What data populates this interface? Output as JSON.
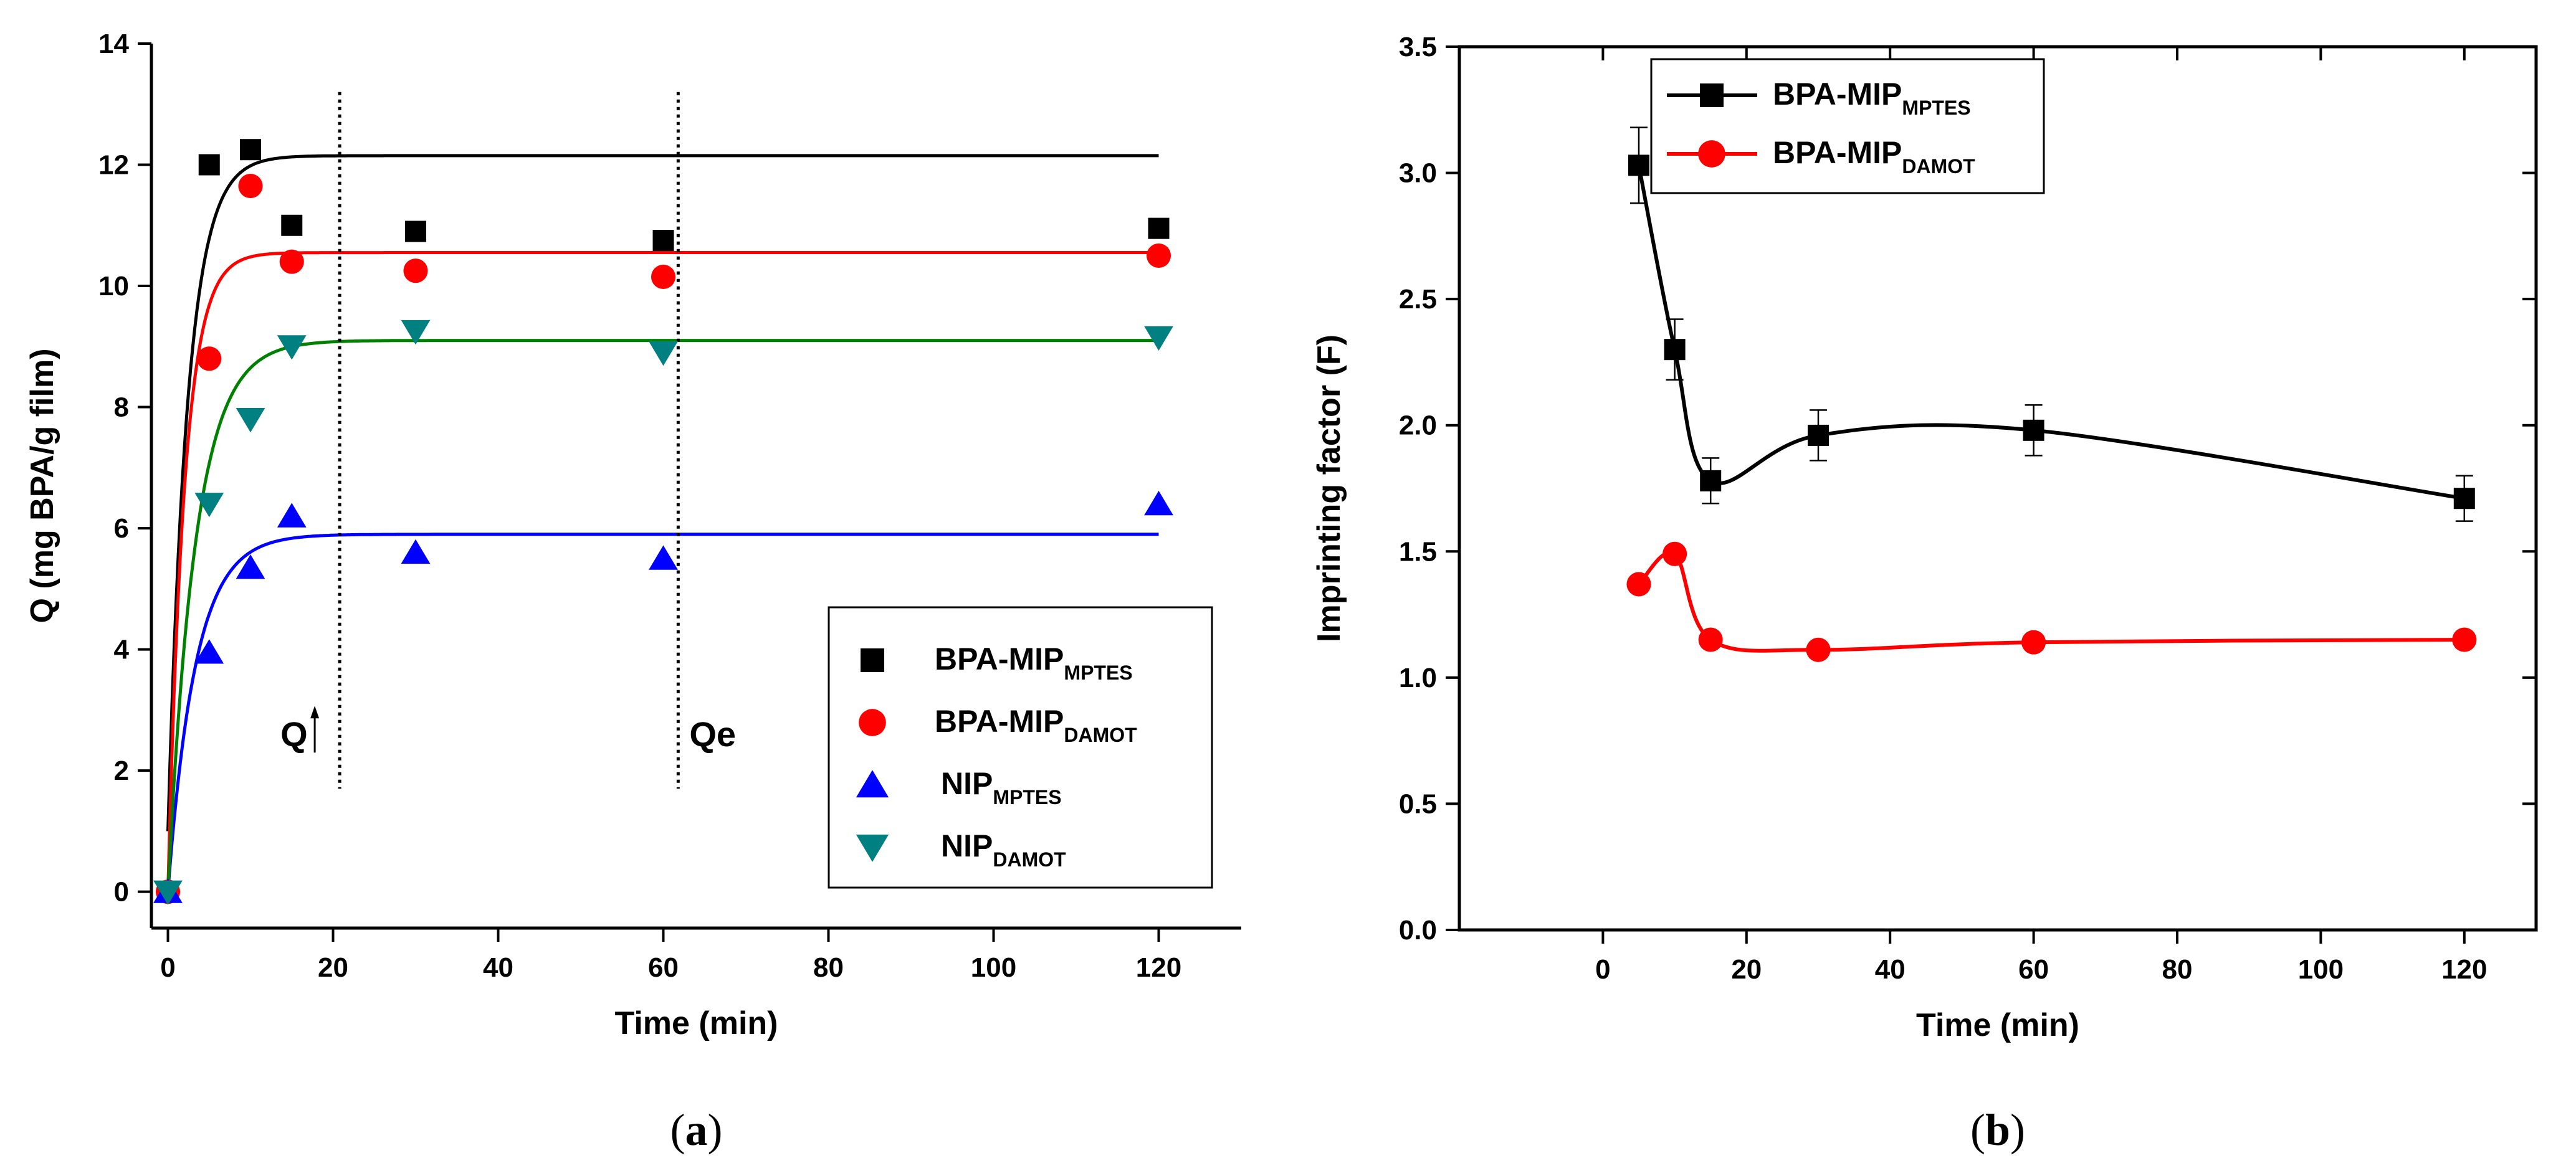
{
  "chart_data": [
    {
      "id": "a",
      "type": "scatter",
      "caption_letter": "a",
      "xlabel": "Time (min)",
      "ylabel": "Q (mg BPA/g film)",
      "xlim": [
        -2,
        130
      ],
      "ylim": [
        -0.6,
        14
      ],
      "xticks": [
        0,
        20,
        40,
        60,
        80,
        100,
        120
      ],
      "yticks": [
        0,
        2,
        4,
        6,
        8,
        10,
        12,
        14
      ],
      "legend_position": "bottom-right",
      "annotations": [
        {
          "text": "Q",
          "arrow": true,
          "at_x": 20.8,
          "ymin": 1.7,
          "ymax": 13.2
        },
        {
          "text": "Qe",
          "arrow": false,
          "at_x": 61.8,
          "ymin": 1.7,
          "ymax": 13.2
        }
      ],
      "series": [
        {
          "name": "BPA-MIP",
          "sub": "MPTES",
          "marker": "square",
          "color": "#000000",
          "x": [
            0,
            5,
            10,
            15,
            30,
            60,
            120
          ],
          "y": [
            0,
            12.0,
            12.25,
            11.0,
            10.9,
            10.75,
            10.95
          ],
          "fit": {
            "model": "first_order",
            "qe": 12.15,
            "k": 0.42,
            "x0": 0,
            "y0": 1.0
          }
        },
        {
          "name": "BPA-MIP",
          "sub": "DAMOT",
          "marker": "circle",
          "color": "#ff0000",
          "x": [
            0,
            5,
            10,
            15,
            30,
            60,
            120
          ],
          "y": [
            0,
            8.8,
            11.65,
            10.4,
            10.25,
            10.15,
            10.5
          ],
          "fit": {
            "model": "first_order",
            "qe": 10.55,
            "k": 0.5,
            "x0": 0,
            "y0": 0
          }
        },
        {
          "name": "NIP",
          "sub": "MPTES",
          "marker": "triangle-up",
          "color": "#0000ff",
          "x": [
            0,
            5,
            10,
            15,
            30,
            60,
            120
          ],
          "y": [
            0,
            3.95,
            5.35,
            6.2,
            5.6,
            5.5,
            6.4
          ],
          "fit": {
            "model": "first_order",
            "qe": 5.9,
            "k": 0.3,
            "x0": 0,
            "y0": 0
          }
        },
        {
          "name": "NIP",
          "sub": "DAMOT",
          "marker": "triangle-down",
          "color": "#008080",
          "x": [
            0,
            5,
            10,
            15,
            30,
            60,
            120
          ],
          "y": [
            0,
            6.4,
            7.8,
            9.0,
            9.25,
            8.9,
            9.15
          ],
          "fit": {
            "model": "first_order",
            "qe": 9.1,
            "k": 0.3,
            "x0": 0,
            "y0": 0
          }
        }
      ]
    },
    {
      "id": "b",
      "type": "line",
      "caption_letter": "b",
      "xlabel": "Time (min)",
      "ylabel": "Imprinting factor (F)",
      "xlim": [
        -20,
        130
      ],
      "ylim": [
        0,
        3.5
      ],
      "xticks": [
        0,
        20,
        40,
        60,
        80,
        100,
        120
      ],
      "yticks": [
        0.0,
        0.5,
        1.0,
        1.5,
        2.0,
        2.5,
        3.0,
        3.5
      ],
      "legend_position": "top-left",
      "series": [
        {
          "name": "BPA-MIP",
          "sub": "MPTES",
          "marker": "square",
          "color": "#000000",
          "x": [
            5,
            10,
            15,
            30,
            60,
            120
          ],
          "y": [
            3.03,
            2.3,
            1.78,
            1.96,
            1.98,
            1.71
          ],
          "err": [
            0.15,
            0.12,
            0.09,
            0.1,
            0.1,
            0.09
          ]
        },
        {
          "name": "BPA-MIP",
          "sub": "DAMOT",
          "marker": "circle",
          "color": "#ff0000",
          "x": [
            5,
            10,
            15,
            30,
            60,
            120
          ],
          "y": [
            1.37,
            1.49,
            1.15,
            1.11,
            1.14,
            1.15
          ]
        }
      ]
    }
  ]
}
